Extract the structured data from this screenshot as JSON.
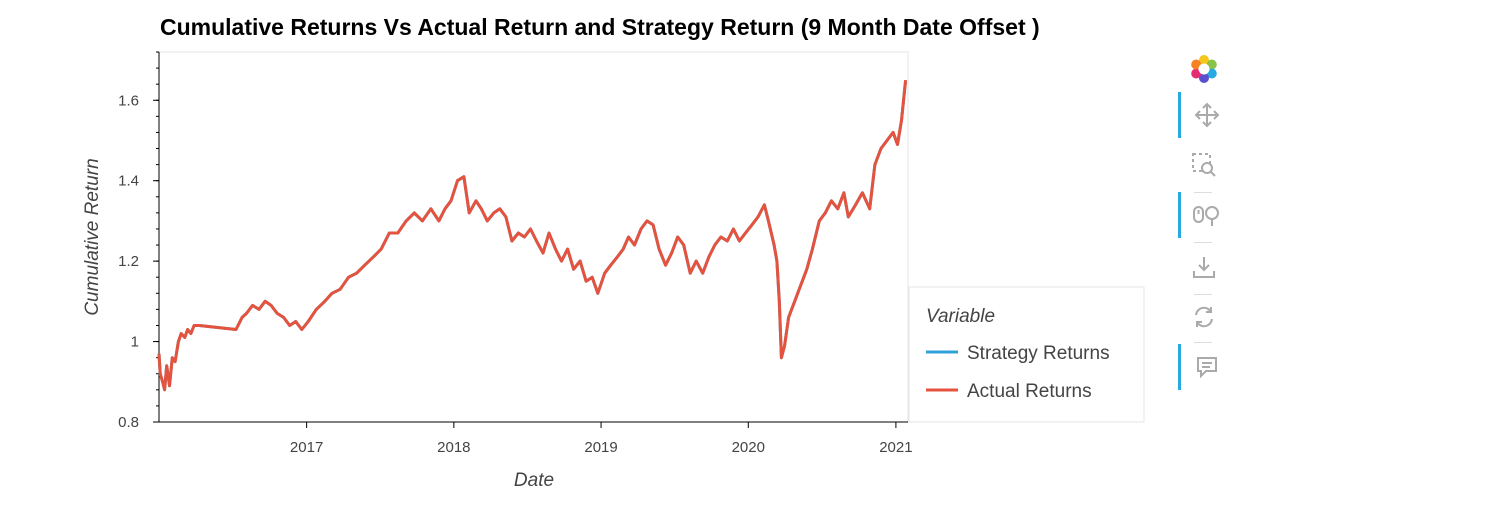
{
  "chart_data": {
    "type": "line",
    "title": "Cumulative Returns Vs Actual Return and Strategy Return (9 Month Date Offset )",
    "xlabel": "Date",
    "ylabel": "Cumulative Return",
    "x_ticks": [
      "2017",
      "2018",
      "2019",
      "2020",
      "2021"
    ],
    "y_ticks": [
      "0.8",
      "1",
      "1.2",
      "1.4",
      "1.6"
    ],
    "xlim": [
      "2016-01-01",
      "2021-01-31"
    ],
    "ylim": [
      0.8,
      1.72
    ],
    "legend_title": "Variable",
    "legend_position": "right",
    "series": [
      {
        "name": "Strategy Returns",
        "color": "#30a2da",
        "x": [
          "2016-01-01",
          "2016-01-04",
          "2016-01-10",
          "2016-01-15",
          "2016-01-20",
          "2016-01-27",
          "2016-02-03",
          "2016-02-10",
          "2016-02-18",
          "2016-02-25",
          "2016-03-05",
          "2016-03-12",
          "2016-03-20",
          "2016-03-28",
          "2016-04-10",
          "2016-07-10",
          "2016-07-25",
          "2016-08-05",
          "2016-08-20",
          "2016-09-05",
          "2016-09-20",
          "2016-10-05",
          "2016-10-20",
          "2016-11-05",
          "2016-11-20",
          "2016-12-05",
          "2016-12-20",
          "2017-01-05",
          "2017-01-25",
          "2017-02-15",
          "2017-03-05",
          "2017-03-25",
          "2017-04-15",
          "2017-05-05",
          "2017-05-25",
          "2017-06-15",
          "2017-07-05",
          "2017-07-25",
          "2017-08-15",
          "2017-09-05",
          "2017-09-25",
          "2017-10-15",
          "2017-11-05",
          "2017-11-25",
          "2017-12-10",
          "2017-12-25",
          "2018-01-10",
          "2018-01-26",
          "2018-02-08",
          "2018-02-25",
          "2018-03-10",
          "2018-03-25",
          "2018-04-10",
          "2018-04-25",
          "2018-05-10",
          "2018-05-25",
          "2018-06-10",
          "2018-06-25",
          "2018-07-10",
          "2018-07-25",
          "2018-08-10",
          "2018-08-25",
          "2018-09-10",
          "2018-09-25",
          "2018-10-10",
          "2018-10-25",
          "2018-11-10",
          "2018-11-25",
          "2018-12-10",
          "2018-12-24",
          "2019-01-10",
          "2019-01-25",
          "2019-02-10",
          "2019-02-25",
          "2019-03-10",
          "2019-03-25",
          "2019-04-10",
          "2019-04-25",
          "2019-05-10",
          "2019-05-25",
          "2019-06-10",
          "2019-06-25",
          "2019-07-10",
          "2019-07-25",
          "2019-08-10",
          "2019-08-25",
          "2019-09-10",
          "2019-09-25",
          "2019-10-10",
          "2019-10-25",
          "2019-11-10",
          "2019-11-25",
          "2019-12-10",
          "2019-12-25",
          "2020-01-10",
          "2020-01-25",
          "2020-02-10",
          "2020-02-20",
          "2020-03-05",
          "2020-03-12",
          "2020-03-18",
          "2020-03-23",
          "2020-03-31",
          "2020-04-10",
          "2020-04-25",
          "2020-05-10",
          "2020-05-25",
          "2020-06-08",
          "2020-06-25",
          "2020-07-10",
          "2020-07-25",
          "2020-08-10",
          "2020-08-25",
          "2020-09-05",
          "2020-09-23",
          "2020-10-10",
          "2020-10-28",
          "2020-11-10",
          "2020-11-25",
          "2020-12-10",
          "2020-12-25",
          "2021-01-05",
          "2021-01-15",
          "2021-01-25"
        ],
        "y": [
          0.97,
          0.92,
          0.9,
          0.88,
          0.94,
          0.89,
          0.96,
          0.95,
          1.0,
          1.02,
          1.01,
          1.03,
          1.02,
          1.04,
          1.04,
          1.03,
          1.06,
          1.07,
          1.09,
          1.08,
          1.1,
          1.09,
          1.07,
          1.06,
          1.04,
          1.05,
          1.03,
          1.05,
          1.08,
          1.1,
          1.12,
          1.13,
          1.16,
          1.17,
          1.19,
          1.21,
          1.23,
          1.27,
          1.27,
          1.3,
          1.32,
          1.3,
          1.33,
          1.3,
          1.33,
          1.35,
          1.4,
          1.41,
          1.32,
          1.35,
          1.33,
          1.3,
          1.32,
          1.33,
          1.31,
          1.25,
          1.27,
          1.26,
          1.28,
          1.25,
          1.22,
          1.27,
          1.23,
          1.2,
          1.23,
          1.18,
          1.2,
          1.15,
          1.16,
          1.12,
          1.17,
          1.19,
          1.21,
          1.23,
          1.26,
          1.24,
          1.28,
          1.3,
          1.29,
          1.23,
          1.19,
          1.22,
          1.26,
          1.24,
          1.17,
          1.2,
          1.17,
          1.21,
          1.24,
          1.26,
          1.25,
          1.28,
          1.25,
          1.27,
          1.29,
          1.31,
          1.34,
          1.3,
          1.24,
          1.2,
          1.1,
          0.96,
          0.99,
          1.06,
          1.1,
          1.14,
          1.18,
          1.23,
          1.3,
          1.32,
          1.35,
          1.33,
          1.37,
          1.31,
          1.34,
          1.37,
          1.33,
          1.44,
          1.48,
          1.5,
          1.52,
          1.49,
          1.55,
          1.65
        ]
      },
      {
        "name": "Actual Returns",
        "color": "#e5533e",
        "x": [
          "2016-01-01",
          "2016-01-04",
          "2016-01-10",
          "2016-01-15",
          "2016-01-20",
          "2016-01-27",
          "2016-02-03",
          "2016-02-10",
          "2016-02-18",
          "2016-02-25",
          "2016-03-05",
          "2016-03-12",
          "2016-03-20",
          "2016-03-28",
          "2016-04-10",
          "2016-07-10",
          "2016-07-25",
          "2016-08-05",
          "2016-08-20",
          "2016-09-05",
          "2016-09-20",
          "2016-10-05",
          "2016-10-20",
          "2016-11-05",
          "2016-11-20",
          "2016-12-05",
          "2016-12-20",
          "2017-01-05",
          "2017-01-25",
          "2017-02-15",
          "2017-03-05",
          "2017-03-25",
          "2017-04-15",
          "2017-05-05",
          "2017-05-25",
          "2017-06-15",
          "2017-07-05",
          "2017-07-25",
          "2017-08-15",
          "2017-09-05",
          "2017-09-25",
          "2017-10-15",
          "2017-11-05",
          "2017-11-25",
          "2017-12-10",
          "2017-12-25",
          "2018-01-10",
          "2018-01-26",
          "2018-02-08",
          "2018-02-25",
          "2018-03-10",
          "2018-03-25",
          "2018-04-10",
          "2018-04-25",
          "2018-05-10",
          "2018-05-25",
          "2018-06-10",
          "2018-06-25",
          "2018-07-10",
          "2018-07-25",
          "2018-08-10",
          "2018-08-25",
          "2018-09-10",
          "2018-09-25",
          "2018-10-10",
          "2018-10-25",
          "2018-11-10",
          "2018-11-25",
          "2018-12-10",
          "2018-12-24",
          "2019-01-10",
          "2019-01-25",
          "2019-02-10",
          "2019-02-25",
          "2019-03-10",
          "2019-03-25",
          "2019-04-10",
          "2019-04-25",
          "2019-05-10",
          "2019-05-25",
          "2019-06-10",
          "2019-06-25",
          "2019-07-10",
          "2019-07-25",
          "2019-08-10",
          "2019-08-25",
          "2019-09-10",
          "2019-09-25",
          "2019-10-10",
          "2019-10-25",
          "2019-11-10",
          "2019-11-25",
          "2019-12-10",
          "2019-12-25",
          "2020-01-10",
          "2020-01-25",
          "2020-02-10",
          "2020-02-20",
          "2020-03-05",
          "2020-03-12",
          "2020-03-18",
          "2020-03-23",
          "2020-03-31",
          "2020-04-10",
          "2020-04-25",
          "2020-05-10",
          "2020-05-25",
          "2020-06-08",
          "2020-06-25",
          "2020-07-10",
          "2020-07-25",
          "2020-08-10",
          "2020-08-25",
          "2020-09-05",
          "2020-09-23",
          "2020-10-10",
          "2020-10-28",
          "2020-11-10",
          "2020-11-25",
          "2020-12-10",
          "2020-12-25",
          "2021-01-05",
          "2021-01-15",
          "2021-01-25"
        ],
        "y": [
          0.97,
          0.92,
          0.9,
          0.88,
          0.94,
          0.89,
          0.96,
          0.95,
          1.0,
          1.02,
          1.01,
          1.03,
          1.02,
          1.04,
          1.04,
          1.03,
          1.06,
          1.07,
          1.09,
          1.08,
          1.1,
          1.09,
          1.07,
          1.06,
          1.04,
          1.05,
          1.03,
          1.05,
          1.08,
          1.1,
          1.12,
          1.13,
          1.16,
          1.17,
          1.19,
          1.21,
          1.23,
          1.27,
          1.27,
          1.3,
          1.32,
          1.3,
          1.33,
          1.3,
          1.33,
          1.35,
          1.4,
          1.41,
          1.32,
          1.35,
          1.33,
          1.3,
          1.32,
          1.33,
          1.31,
          1.25,
          1.27,
          1.26,
          1.28,
          1.25,
          1.22,
          1.27,
          1.23,
          1.2,
          1.23,
          1.18,
          1.2,
          1.15,
          1.16,
          1.12,
          1.17,
          1.19,
          1.21,
          1.23,
          1.26,
          1.24,
          1.28,
          1.3,
          1.29,
          1.23,
          1.19,
          1.22,
          1.26,
          1.24,
          1.17,
          1.2,
          1.17,
          1.21,
          1.24,
          1.26,
          1.25,
          1.28,
          1.25,
          1.27,
          1.29,
          1.31,
          1.34,
          1.3,
          1.24,
          1.2,
          1.1,
          0.96,
          0.99,
          1.06,
          1.1,
          1.14,
          1.18,
          1.23,
          1.3,
          1.32,
          1.35,
          1.33,
          1.37,
          1.31,
          1.34,
          1.37,
          1.33,
          1.44,
          1.48,
          1.5,
          1.52,
          1.49,
          1.55,
          1.65
        ]
      }
    ]
  },
  "toolbar": {
    "tools": [
      {
        "icon": "bokeh-logo-icon",
        "active": false
      },
      {
        "icon": "pan-icon",
        "active": true
      },
      {
        "icon": "box-zoom-icon",
        "active": false
      },
      {
        "icon": "wheel-zoom-icon",
        "active": true
      },
      {
        "icon": "save-icon",
        "active": false
      },
      {
        "icon": "reset-icon",
        "active": false
      },
      {
        "icon": "hover-icon",
        "active": true
      }
    ],
    "active_color": "#26aae1",
    "icon_color": "#aaaaaa"
  }
}
